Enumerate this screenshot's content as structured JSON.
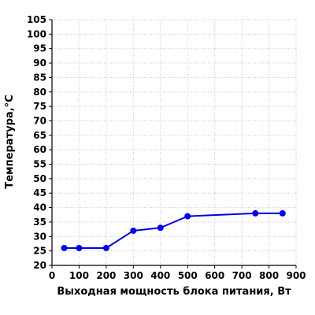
{
  "chart_data": {
    "type": "line",
    "title": "",
    "xlabel": "Выходная мощность блока питания, Вт",
    "ylabel": "Температура,°C",
    "xlim": [
      0,
      900
    ],
    "ylim": [
      20,
      105
    ],
    "x_ticks": [
      0,
      100,
      200,
      300,
      400,
      500,
      600,
      700,
      800,
      900
    ],
    "y_ticks": [
      20,
      25,
      30,
      35,
      40,
      45,
      50,
      55,
      60,
      65,
      70,
      75,
      80,
      85,
      90,
      95,
      100,
      105
    ],
    "grid": true,
    "legend": "none",
    "series": [
      {
        "x": [
          45,
          100,
          200,
          300,
          400,
          500,
          750,
          850
        ],
        "y": [
          26,
          26,
          26,
          32,
          33,
          37,
          38,
          38
        ],
        "color": "#0000e6"
      }
    ]
  }
}
